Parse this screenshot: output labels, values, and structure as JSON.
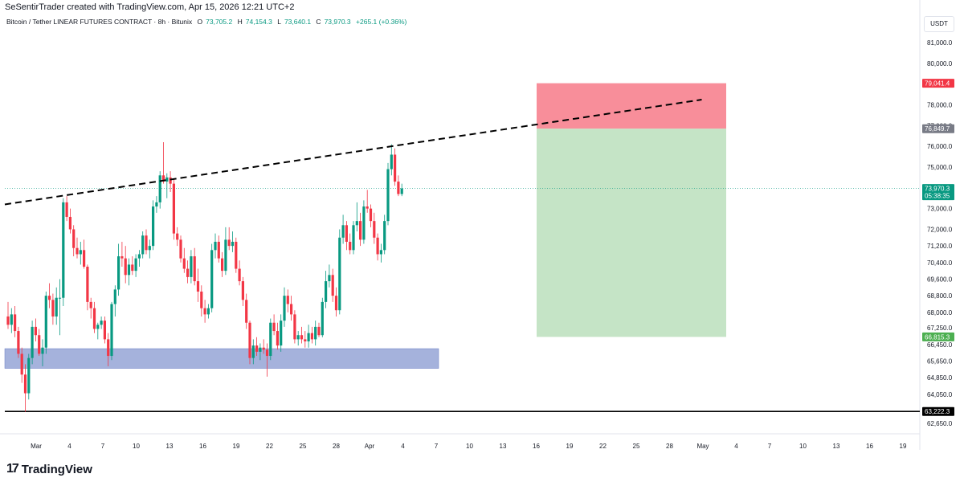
{
  "header": {
    "caption": "SeSentirTrader created with TradingView.com, Apr 15, 2026 12:21 UTC+2"
  },
  "legend": {
    "symbol": "Bitcoin / Tether LINEAR FUTURES CONTRACT · 8h · Bitunix",
    "open_label": "O",
    "open": "73,705.2",
    "high_label": "H",
    "high": "74,154.3",
    "low_label": "L",
    "low": "73,640.1",
    "close_label": "C",
    "close": "73,970.3",
    "change": "+265.1 (+0.36%)"
  },
  "toolbar": {
    "currency": "USDT"
  },
  "footer": {
    "brand": "TradingView",
    "logo_mark": "17"
  },
  "colors": {
    "up": "#089981",
    "down": "#f23645",
    "grid_text": "#131722",
    "stop_zone": "#f7828f",
    "target_zone": "#c2e3c3",
    "support_zone": "#8e9fd3"
  },
  "chart_data": {
    "type": "candlestick",
    "timeframe": "8h",
    "ylim": [
      62100,
      81700
    ],
    "x_tick_labels": [
      "Mar",
      "4",
      "7",
      "10",
      "13",
      "16",
      "19",
      "22",
      "25",
      "28",
      "Apr",
      "4",
      "7",
      "10",
      "13",
      "16",
      "19",
      "22",
      "25",
      "28",
      "May",
      "4",
      "7",
      "10",
      "13",
      "16",
      "19"
    ],
    "y_tick_labels": [
      81000,
      80000,
      79000,
      78000,
      77000,
      76000,
      75000,
      74000,
      73000,
      72000,
      71200,
      70400,
      69600,
      68800,
      68000,
      67250,
      66450,
      65650,
      64850,
      64050,
      63250,
      62650
    ],
    "price_tags": [
      {
        "label": "79,041.4",
        "kind": "stop"
      },
      {
        "label": "76,849.7",
        "kind": "entry"
      },
      {
        "label": "73,970.3",
        "kind": "last",
        "countdown": "05:38:35"
      },
      {
        "label": "66,815.3",
        "kind": "target"
      },
      {
        "label": "63,222.3",
        "kind": "horizontal-line"
      }
    ],
    "candles": [
      [
        67800,
        68500,
        67200,
        67400
      ],
      [
        67400,
        68200,
        67000,
        67900
      ],
      [
        67900,
        68300,
        66800,
        67100
      ],
      [
        67100,
        67300,
        65800,
        66000
      ],
      [
        66000,
        66300,
        64600,
        65000
      ],
      [
        65000,
        65500,
        63200,
        64100
      ],
      [
        64100,
        66000,
        63800,
        65800
      ],
      [
        65800,
        67600,
        65500,
        67300
      ],
      [
        67300,
        67700,
        66600,
        66900
      ],
      [
        66900,
        67200,
        65900,
        66000
      ],
      [
        66000,
        66700,
        65400,
        66300
      ],
      [
        66300,
        69000,
        66000,
        68800
      ],
      [
        68800,
        69400,
        68200,
        68600
      ],
      [
        68600,
        68900,
        67400,
        67800
      ],
      [
        67800,
        69200,
        67400,
        68700
      ],
      [
        68700,
        69600,
        66900,
        68700
      ],
      [
        68700,
        73500,
        68300,
        73300
      ],
      [
        73300,
        73600,
        72400,
        72600
      ],
      [
        72600,
        73000,
        71800,
        72000
      ],
      [
        72000,
        72200,
        70700,
        71100
      ],
      [
        71100,
        71600,
        70600,
        70800
      ],
      [
        70800,
        71400,
        70300,
        71000
      ],
      [
        71000,
        71500,
        70100,
        70200
      ],
      [
        70200,
        70300,
        68100,
        68500
      ],
      [
        68500,
        68700,
        67700,
        68200
      ],
      [
        68200,
        68500,
        67000,
        67200
      ],
      [
        67200,
        67500,
        66700,
        67400
      ],
      [
        67400,
        67800,
        67200,
        67600
      ],
      [
        67600,
        67800,
        66500,
        66700
      ],
      [
        66700,
        67000,
        65400,
        65900
      ],
      [
        65900,
        68500,
        65700,
        68400
      ],
      [
        68400,
        69300,
        67800,
        69100
      ],
      [
        69100,
        71300,
        68800,
        70700
      ],
      [
        70700,
        71400,
        70200,
        70600
      ],
      [
        70600,
        71200,
        69400,
        69800
      ],
      [
        69800,
        70600,
        69300,
        70300
      ],
      [
        70300,
        70700,
        69800,
        70000
      ],
      [
        70000,
        70800,
        69700,
        70600
      ],
      [
        70600,
        71000,
        70200,
        70800
      ],
      [
        70800,
        71900,
        70600,
        71700
      ],
      [
        71700,
        72000,
        70800,
        71000
      ],
      [
        71000,
        71500,
        70600,
        71200
      ],
      [
        71200,
        73400,
        71000,
        73100
      ],
      [
        73100,
        73600,
        72800,
        73300
      ],
      [
        73300,
        74800,
        73000,
        74600
      ],
      [
        74600,
        76200,
        74200,
        74300
      ],
      [
        74300,
        74700,
        73500,
        74500
      ],
      [
        74500,
        74800,
        73800,
        74200
      ],
      [
        74200,
        74400,
        71500,
        71800
      ],
      [
        71800,
        72100,
        71200,
        71500
      ],
      [
        71500,
        71700,
        70400,
        70600
      ],
      [
        70600,
        71100,
        69900,
        70100
      ],
      [
        70100,
        70500,
        69400,
        69700
      ],
      [
        69700,
        71000,
        69400,
        70700
      ],
      [
        70700,
        71100,
        69300,
        69500
      ],
      [
        69500,
        70100,
        68500,
        69000
      ],
      [
        69000,
        69300,
        67800,
        68200
      ],
      [
        68200,
        68600,
        67500,
        67900
      ],
      [
        67900,
        68400,
        67700,
        68200
      ],
      [
        68200,
        71300,
        68000,
        71000
      ],
      [
        71000,
        71800,
        70600,
        71400
      ],
      [
        71400,
        71700,
        70400,
        70600
      ],
      [
        70600,
        70900,
        69700,
        70000
      ],
      [
        70000,
        72100,
        69800,
        71500
      ],
      [
        71500,
        72100,
        71000,
        71200
      ],
      [
        71200,
        71900,
        70900,
        71400
      ],
      [
        71400,
        71600,
        69900,
        70100
      ],
      [
        70100,
        70500,
        69300,
        69500
      ],
      [
        69500,
        69700,
        68300,
        68600
      ],
      [
        68600,
        68900,
        67200,
        67500
      ],
      [
        67500,
        67600,
        65500,
        65800
      ],
      [
        65800,
        66700,
        65500,
        66400
      ],
      [
        66400,
        66800,
        65900,
        66100
      ],
      [
        66100,
        66500,
        65700,
        66300
      ],
      [
        66300,
        66700,
        66000,
        66200
      ],
      [
        66200,
        66500,
        64900,
        65900
      ],
      [
        65900,
        67700,
        65700,
        67500
      ],
      [
        67500,
        67900,
        66900,
        67100
      ],
      [
        67100,
        67500,
        66200,
        66400
      ],
      [
        66400,
        67900,
        66100,
        67600
      ],
      [
        67600,
        69200,
        67300,
        68800
      ],
      [
        68800,
        69100,
        68000,
        68400
      ],
      [
        68400,
        68800,
        67600,
        67900
      ],
      [
        67900,
        68100,
        66500,
        66700
      ],
      [
        66700,
        67100,
        66400,
        66900
      ],
      [
        66900,
        67300,
        66500,
        66700
      ],
      [
        66700,
        67100,
        66300,
        66600
      ],
      [
        66600,
        67400,
        66300,
        67000
      ],
      [
        67000,
        67300,
        66500,
        66700
      ],
      [
        66700,
        67600,
        66400,
        67300
      ],
      [
        67300,
        67500,
        66800,
        66900
      ],
      [
        66900,
        68700,
        66800,
        68500
      ],
      [
        68500,
        70000,
        68200,
        69500
      ],
      [
        69500,
        70300,
        69200,
        69800
      ],
      [
        69800,
        70100,
        68500,
        68800
      ],
      [
        68800,
        69200,
        67800,
        68100
      ],
      [
        68100,
        72000,
        67900,
        71600
      ],
      [
        71600,
        72700,
        71300,
        72200
      ],
      [
        72200,
        72400,
        71000,
        71400
      ],
      [
        71400,
        71800,
        70800,
        71000
      ],
      [
        71000,
        72400,
        70800,
        72200
      ],
      [
        72200,
        73300,
        71900,
        72400
      ],
      [
        72400,
        72800,
        71200,
        71500
      ],
      [
        71500,
        73400,
        71300,
        73100
      ],
      [
        73100,
        73900,
        72800,
        73000
      ],
      [
        73000,
        73200,
        72100,
        72400
      ],
      [
        72400,
        72800,
        71300,
        71600
      ],
      [
        71600,
        71800,
        70500,
        70800
      ],
      [
        70800,
        71300,
        70400,
        71000
      ],
      [
        71000,
        72700,
        70800,
        72400
      ],
      [
        72400,
        75200,
        72200,
        74900
      ],
      [
        74900,
        76100,
        74600,
        75600
      ],
      [
        75600,
        75900,
        74100,
        74300
      ],
      [
        74300,
        74600,
        73600,
        73700
      ],
      [
        73700,
        74200,
        73600,
        73970
      ]
    ],
    "support_zone": {
      "from": 65300,
      "to": 66250
    },
    "position": {
      "stop": 79041.4,
      "entry": 76849.7,
      "target": 66815.3
    },
    "horizontal_line": 63222.3,
    "trendline": [
      {
        "candle": 0,
        "price": 73200
      },
      {
        "candle": 145,
        "price": 78250
      }
    ],
    "last_price": 73970.3
  }
}
